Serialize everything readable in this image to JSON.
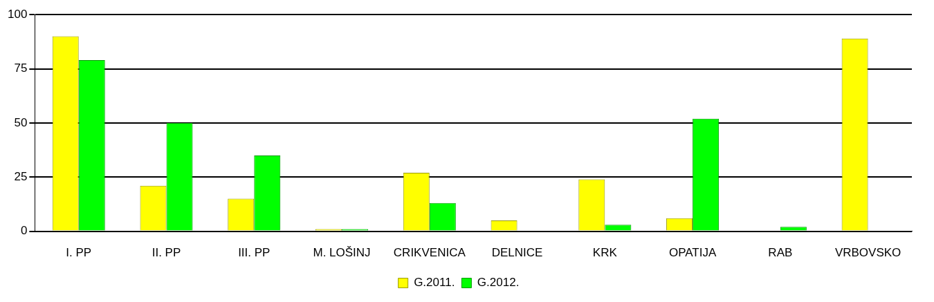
{
  "chart_data": {
    "type": "bar",
    "categories": [
      "I. PP",
      "II. PP",
      "III. PP",
      "M. LOŠINJ",
      "CRIKVENICA",
      "DELNICE",
      "KRK",
      "OPATIJA",
      "RAB",
      "VRBOVSKO"
    ],
    "series": [
      {
        "name": "G.2011.",
        "color": "#ffff00",
        "values": [
          90,
          21,
          15,
          1,
          27,
          5,
          24,
          6,
          0,
          89
        ]
      },
      {
        "name": "G.2012.",
        "color": "#00ff00",
        "values": [
          79,
          50,
          35,
          1,
          13,
          0,
          3,
          52,
          2,
          0
        ]
      }
    ],
    "ylim": [
      0,
      100
    ],
    "yticks": [
      0,
      25,
      50,
      75,
      100
    ],
    "grid": "y",
    "legend": "bottom"
  }
}
